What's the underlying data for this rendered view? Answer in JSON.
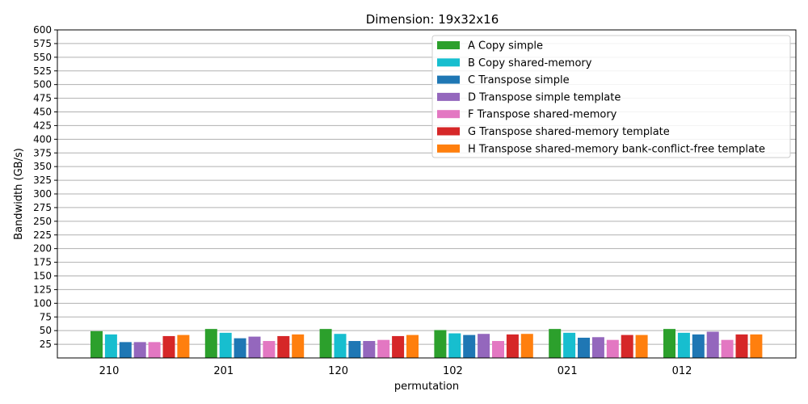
{
  "chart_data": {
    "type": "bar",
    "title": "Dimension: 19x32x16",
    "xlabel": "permutation",
    "ylabel": "Bandwidth (GB/s)",
    "ylim": [
      0,
      600
    ],
    "yticks": [
      25,
      50,
      75,
      100,
      125,
      150,
      175,
      200,
      225,
      250,
      275,
      300,
      325,
      350,
      375,
      400,
      425,
      450,
      475,
      500,
      525,
      550,
      575,
      600
    ],
    "grid": "horizontal",
    "legend_position": "top-right",
    "categories": [
      "210",
      "201",
      "120",
      "102",
      "021",
      "012"
    ],
    "series": [
      {
        "name": "A Copy simple",
        "color": "#2ca02c",
        "values": [
          49,
          53,
          53,
          51,
          53,
          53
        ]
      },
      {
        "name": "B Copy shared-memory",
        "color": "#17becf",
        "values": [
          43,
          46,
          44,
          45,
          46,
          46
        ]
      },
      {
        "name": "C Transpose simple",
        "color": "#1f77b4",
        "values": [
          29,
          36,
          31,
          42,
          37,
          43
        ]
      },
      {
        "name": "D Transpose simple template",
        "color": "#9467bd",
        "values": [
          29,
          39,
          31,
          44,
          38,
          48
        ]
      },
      {
        "name": "F Transpose shared-memory",
        "color": "#e377c2",
        "values": [
          29,
          31,
          33,
          31,
          33,
          33
        ]
      },
      {
        "name": "G Transpose shared-memory template",
        "color": "#d62728",
        "values": [
          40,
          40,
          40,
          43,
          42,
          43
        ]
      },
      {
        "name": "H Transpose shared-memory bank-conflict-free template",
        "color": "#ff7f0e",
        "values": [
          42,
          43,
          42,
          44,
          42,
          43
        ]
      }
    ]
  }
}
